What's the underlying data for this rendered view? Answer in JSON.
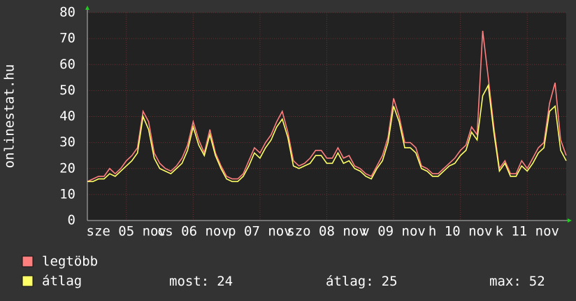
{
  "chart_data": {
    "type": "line",
    "y_label": "onlinestat.hu",
    "x": [
      0,
      2,
      4,
      6,
      8,
      10,
      12,
      14,
      16,
      18,
      20,
      22,
      24,
      26,
      28,
      30,
      32,
      34,
      36,
      38,
      40,
      42,
      44,
      46,
      48,
      50,
      52,
      54,
      56,
      58,
      60,
      62,
      64,
      66,
      68,
      70,
      72,
      74,
      76,
      78,
      80,
      82,
      84,
      86,
      88,
      90,
      92,
      94,
      96,
      98,
      100,
      102,
      104,
      106,
      108,
      110,
      112,
      114,
      116,
      118,
      120,
      122,
      124,
      126,
      128,
      130,
      132,
      134,
      136,
      138,
      140,
      142,
      144,
      146,
      148,
      150,
      152,
      154,
      156,
      158,
      160,
      162,
      164,
      166,
      168,
      170,
      172
    ],
    "xlim": [
      0,
      172
    ],
    "xticks": [
      {
        "value": 14,
        "label": "sze 05 nov"
      },
      {
        "value": 38,
        "label": "cs 06 nov"
      },
      {
        "value": 62,
        "label": "p 07 nov"
      },
      {
        "value": 86,
        "label": "szo 08 nov"
      },
      {
        "value": 110,
        "label": "v 09 nov"
      },
      {
        "value": 134,
        "label": "h 10 nov"
      },
      {
        "value": 158,
        "label": "k 11 nov"
      }
    ],
    "ylim": [
      0,
      80
    ],
    "yticks": [
      0,
      10,
      20,
      30,
      40,
      50,
      60,
      70,
      80
    ],
    "grid": true,
    "series": [
      {
        "name": "legtöbb",
        "color": "#ff7f7f",
        "values": [
          15,
          16,
          17,
          17,
          20,
          18,
          20,
          23,
          25,
          28,
          42,
          38,
          26,
          22,
          20,
          19,
          21,
          24,
          29,
          38,
          31,
          26,
          35,
          26,
          21,
          17,
          16,
          16,
          18,
          23,
          28,
          26,
          30,
          33,
          38,
          42,
          34,
          23,
          21,
          22,
          24,
          27,
          27,
          24,
          24,
          28,
          24,
          25,
          21,
          20,
          18,
          17,
          21,
          25,
          32,
          47,
          40,
          30,
          30,
          28,
          21,
          20,
          18,
          18,
          20,
          22,
          24,
          27,
          29,
          36,
          33,
          73,
          55,
          36,
          20,
          23,
          18,
          18,
          23,
          20,
          24,
          28,
          30,
          45,
          53,
          31,
          25
        ]
      },
      {
        "name": "átlag",
        "color": "#ffff66",
        "values": [
          15,
          15,
          16,
          16,
          18,
          17,
          19,
          21,
          23,
          26,
          40,
          35,
          24,
          20,
          19,
          18,
          20,
          22,
          27,
          36,
          29,
          25,
          33,
          25,
          20,
          16,
          15,
          15,
          17,
          21,
          26,
          24,
          28,
          31,
          36,
          39,
          32,
          21,
          20,
          21,
          22,
          25,
          25,
          22,
          22,
          26,
          22,
          23,
          20,
          19,
          17,
          16,
          20,
          23,
          30,
          44,
          38,
          28,
          28,
          26,
          20,
          19,
          17,
          17,
          19,
          21,
          22,
          25,
          27,
          34,
          31,
          48,
          52,
          34,
          19,
          22,
          17,
          17,
          21,
          19,
          22,
          26,
          28,
          42,
          44,
          27,
          23
        ]
      }
    ],
    "stats": [
      {
        "label": "most:",
        "value": 24
      },
      {
        "label": "átlag:",
        "value": 25
      },
      {
        "label": "max:",
        "value": 52
      }
    ]
  }
}
